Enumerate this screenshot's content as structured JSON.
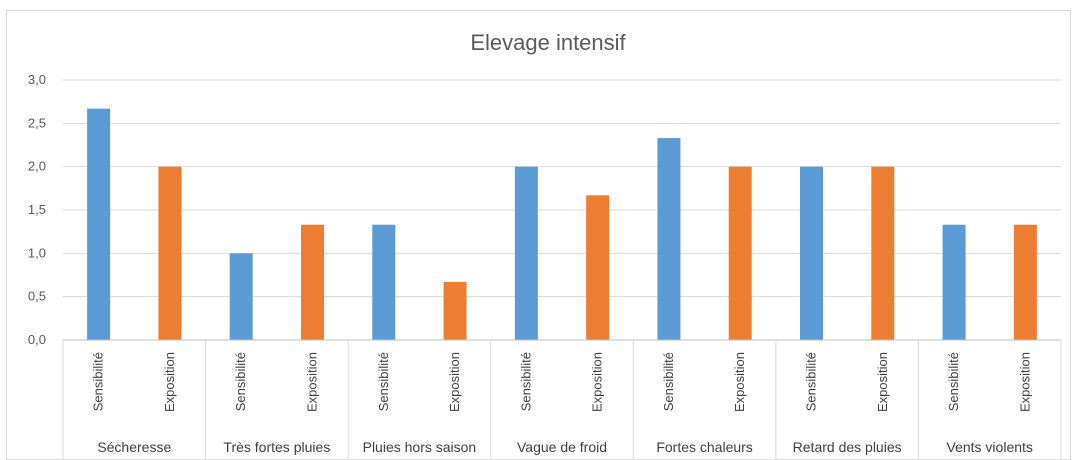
{
  "chart_data": {
    "type": "bar",
    "title": "Elevage intensif",
    "xlabel": "",
    "ylabel": "",
    "ylim": [
      0,
      3
    ],
    "yticks": [
      "0,0",
      "0,5",
      "1,0",
      "1,5",
      "2,0",
      "2,5",
      "3,0"
    ],
    "grid": true,
    "legend": "none",
    "colors": {
      "Sensibilité": "#5b9bd5",
      "Exposition": "#ed7d31"
    },
    "groups": [
      {
        "name": "Sécheresse",
        "bars": [
          {
            "label": "Sensibilité",
            "value": 2.67
          },
          {
            "label": "Exposition",
            "value": 2.0
          }
        ]
      },
      {
        "name": "Très fortes pluies",
        "bars": [
          {
            "label": "Sensibilité",
            "value": 1.0
          },
          {
            "label": "Exposition",
            "value": 1.33
          }
        ]
      },
      {
        "name": "Pluies hors saison",
        "bars": [
          {
            "label": "Sensibilité",
            "value": 1.33
          },
          {
            "label": "Exposition",
            "value": 0.67
          }
        ]
      },
      {
        "name": "Vague de froid",
        "bars": [
          {
            "label": "Sensibilité",
            "value": 2.0
          },
          {
            "label": "Exposition",
            "value": 1.67
          }
        ]
      },
      {
        "name": "Fortes chaleurs",
        "bars": [
          {
            "label": "Sensibilité",
            "value": 2.33
          },
          {
            "label": "Exposition",
            "value": 2.0
          }
        ]
      },
      {
        "name": "Retard des pluies",
        "bars": [
          {
            "label": "Sensibilité",
            "value": 2.0
          },
          {
            "label": "Exposition",
            "value": 2.0
          }
        ]
      },
      {
        "name": "Vents violents",
        "bars": [
          {
            "label": "Sensibilité",
            "value": 1.33
          },
          {
            "label": "Exposition",
            "value": 1.33
          }
        ]
      }
    ]
  }
}
